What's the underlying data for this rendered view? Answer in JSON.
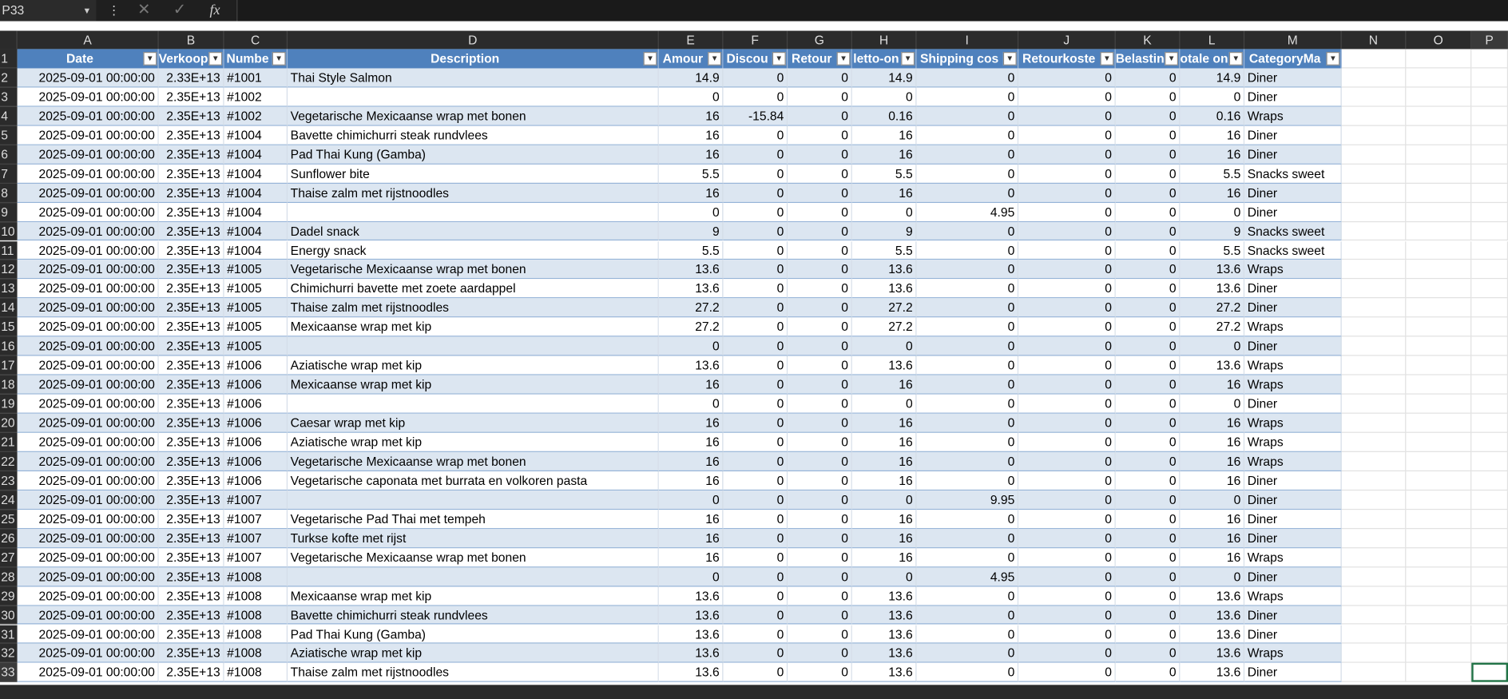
{
  "formula_bar": {
    "name_box": "P33",
    "fx": "fx"
  },
  "column_letters": [
    "A",
    "B",
    "C",
    "D",
    "E",
    "F",
    "G",
    "H",
    "I",
    "J",
    "K",
    "L",
    "M",
    "N",
    "O",
    "P"
  ],
  "row_numbers": [
    1,
    2,
    3,
    4,
    5,
    6,
    7,
    8,
    9,
    10,
    11,
    12,
    13,
    14,
    15,
    16,
    17,
    18,
    19,
    20,
    21,
    22,
    23,
    24,
    25,
    26,
    27,
    28,
    29,
    30,
    31,
    32,
    33
  ],
  "table": {
    "headers": [
      "Date",
      "Verkoop",
      "Numbe",
      "Description",
      "Amour",
      "Discou",
      "Retour",
      "letto-on",
      "Shipping cos",
      "Retourkoste",
      "Belasting",
      "otale on",
      "CategoryMa"
    ],
    "rows": [
      [
        "2025-09-01 00:00:00",
        "2.33E+13",
        "#1001",
        "Thai Style Salmon",
        14.9,
        0,
        0,
        14.9,
        0,
        0,
        0,
        14.9,
        "Diner"
      ],
      [
        "2025-09-01 00:00:00",
        "2.35E+13",
        "#1002",
        null,
        0,
        0,
        0,
        0,
        0,
        0,
        0,
        0,
        "Diner"
      ],
      [
        "2025-09-01 00:00:00",
        "2.35E+13",
        "#1002",
        "Vegetarische Mexicaanse wrap met bonen",
        16,
        -15.84,
        0,
        0.16,
        0,
        0,
        0,
        0.16,
        "Wraps"
      ],
      [
        "2025-09-01 00:00:00",
        "2.35E+13",
        "#1004",
        "Bavette chimichurri steak rundvlees",
        16,
        0,
        0,
        16,
        0,
        0,
        0,
        16,
        "Diner"
      ],
      [
        "2025-09-01 00:00:00",
        "2.35E+13",
        "#1004",
        "Pad Thai Kung (Gamba)",
        16,
        0,
        0,
        16,
        0,
        0,
        0,
        16,
        "Diner"
      ],
      [
        "2025-09-01 00:00:00",
        "2.35E+13",
        "#1004",
        "Sunflower bite",
        5.5,
        0,
        0,
        5.5,
        0,
        0,
        0,
        5.5,
        "Snacks sweet"
      ],
      [
        "2025-09-01 00:00:00",
        "2.35E+13",
        "#1004",
        "Thaise zalm met rijstnoodles",
        16,
        0,
        0,
        16,
        0,
        0,
        0,
        16,
        "Diner"
      ],
      [
        "2025-09-01 00:00:00",
        "2.35E+13",
        "#1004",
        null,
        0,
        0,
        0,
        0,
        4.95,
        0,
        0,
        0,
        "Diner"
      ],
      [
        "2025-09-01 00:00:00",
        "2.35E+13",
        "#1004",
        "Dadel snack",
        9,
        0,
        0,
        9,
        0,
        0,
        0,
        9,
        "Snacks sweet"
      ],
      [
        "2025-09-01 00:00:00",
        "2.35E+13",
        "#1004",
        "Energy snack",
        5.5,
        0,
        0,
        5.5,
        0,
        0,
        0,
        5.5,
        "Snacks sweet"
      ],
      [
        "2025-09-01 00:00:00",
        "2.35E+13",
        "#1005",
        "Vegetarische Mexicaanse wrap met bonen",
        13.6,
        0,
        0,
        13.6,
        0,
        0,
        0,
        13.6,
        "Wraps"
      ],
      [
        "2025-09-01 00:00:00",
        "2.35E+13",
        "#1005",
        "Chimichurri bavette met zoete aardappel",
        13.6,
        0,
        0,
        13.6,
        0,
        0,
        0,
        13.6,
        "Diner"
      ],
      [
        "2025-09-01 00:00:00",
        "2.35E+13",
        "#1005",
        "Thaise zalm met rijstnoodles",
        27.2,
        0,
        0,
        27.2,
        0,
        0,
        0,
        27.2,
        "Diner"
      ],
      [
        "2025-09-01 00:00:00",
        "2.35E+13",
        "#1005",
        "Mexicaanse wrap met kip",
        27.2,
        0,
        0,
        27.2,
        0,
        0,
        0,
        27.2,
        "Wraps"
      ],
      [
        "2025-09-01 00:00:00",
        "2.35E+13",
        "#1005",
        null,
        0,
        0,
        0,
        0,
        0,
        0,
        0,
        0,
        "Diner"
      ],
      [
        "2025-09-01 00:00:00",
        "2.35E+13",
        "#1006",
        "Aziatische wrap met kip",
        13.6,
        0,
        0,
        13.6,
        0,
        0,
        0,
        13.6,
        "Wraps"
      ],
      [
        "2025-09-01 00:00:00",
        "2.35E+13",
        "#1006",
        "Mexicaanse wrap met kip",
        16,
        0,
        0,
        16,
        0,
        0,
        0,
        16,
        "Wraps"
      ],
      [
        "2025-09-01 00:00:00",
        "2.35E+13",
        "#1006",
        null,
        0,
        0,
        0,
        0,
        0,
        0,
        0,
        0,
        "Diner"
      ],
      [
        "2025-09-01 00:00:00",
        "2.35E+13",
        "#1006",
        "Caesar wrap met kip",
        16,
        0,
        0,
        16,
        0,
        0,
        0,
        16,
        "Wraps"
      ],
      [
        "2025-09-01 00:00:00",
        "2.35E+13",
        "#1006",
        "Aziatische wrap met kip",
        16,
        0,
        0,
        16,
        0,
        0,
        0,
        16,
        "Wraps"
      ],
      [
        "2025-09-01 00:00:00",
        "2.35E+13",
        "#1006",
        "Vegetarische Mexicaanse wrap met bonen",
        16,
        0,
        0,
        16,
        0,
        0,
        0,
        16,
        "Wraps"
      ],
      [
        "2025-09-01 00:00:00",
        "2.35E+13",
        "#1006",
        "Vegetarische caponata met burrata en volkoren pasta",
        16,
        0,
        0,
        16,
        0,
        0,
        0,
        16,
        "Diner"
      ],
      [
        "2025-09-01 00:00:00",
        "2.35E+13",
        "#1007",
        null,
        0,
        0,
        0,
        0,
        9.95,
        0,
        0,
        0,
        "Diner"
      ],
      [
        "2025-09-01 00:00:00",
        "2.35E+13",
        "#1007",
        "Vegetarische Pad Thai met tempeh",
        16,
        0,
        0,
        16,
        0,
        0,
        0,
        16,
        "Diner"
      ],
      [
        "2025-09-01 00:00:00",
        "2.35E+13",
        "#1007",
        "Turkse kofte met rijst",
        16,
        0,
        0,
        16,
        0,
        0,
        0,
        16,
        "Diner"
      ],
      [
        "2025-09-01 00:00:00",
        "2.35E+13",
        "#1007",
        "Vegetarische Mexicaanse wrap met bonen",
        16,
        0,
        0,
        16,
        0,
        0,
        0,
        16,
        "Wraps"
      ],
      [
        "2025-09-01 00:00:00",
        "2.35E+13",
        "#1008",
        null,
        0,
        0,
        0,
        0,
        4.95,
        0,
        0,
        0,
        "Diner"
      ],
      [
        "2025-09-01 00:00:00",
        "2.35E+13",
        "#1008",
        "Mexicaanse wrap met kip",
        13.6,
        0,
        0,
        13.6,
        0,
        0,
        0,
        13.6,
        "Wraps"
      ],
      [
        "2025-09-01 00:00:00",
        "2.35E+13",
        "#1008",
        "Bavette chimichurri steak rundvlees",
        13.6,
        0,
        0,
        13.6,
        0,
        0,
        0,
        13.6,
        "Diner"
      ],
      [
        "2025-09-01 00:00:00",
        "2.35E+13",
        "#1008",
        "Pad Thai Kung (Gamba)",
        13.6,
        0,
        0,
        13.6,
        0,
        0,
        0,
        13.6,
        "Diner"
      ],
      [
        "2025-09-01 00:00:00",
        "2.35E+13",
        "#1008",
        "Aziatische wrap met kip",
        13.6,
        0,
        0,
        13.6,
        0,
        0,
        0,
        13.6,
        "Wraps"
      ],
      [
        "2025-09-01 00:00:00",
        "2.35E+13",
        "#1008",
        "Thaise zalm met rijstnoodles",
        13.6,
        0,
        0,
        13.6,
        0,
        0,
        0,
        13.6,
        "Diner"
      ]
    ]
  }
}
